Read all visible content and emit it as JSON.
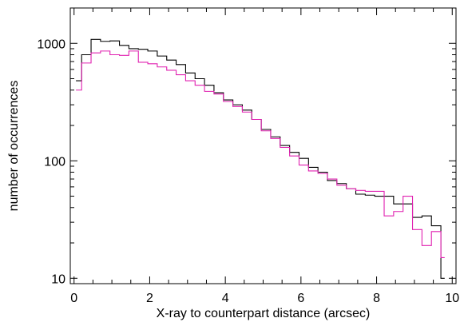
{
  "chart_data": {
    "type": "line",
    "step": true,
    "xlabel": "X-ray to counterpart distance (arcsec)",
    "ylabel": "number of occurrences",
    "xlim": [
      -0.1,
      10.1
    ],
    "ylim": [
      9,
      2000
    ],
    "yscale": "log",
    "xticks": [
      0,
      2,
      4,
      6,
      8,
      10
    ],
    "xtick_labels": [
      "0",
      "2",
      "4",
      "6",
      "8",
      "10"
    ],
    "yticks": [
      10,
      100,
      1000
    ],
    "ytick_labels": [
      "10",
      "100",
      "1000"
    ],
    "grid": false,
    "bin_edges": [
      0.05,
      0.2,
      0.45,
      0.7,
      0.95,
      1.2,
      1.45,
      1.7,
      1.95,
      2.2,
      2.45,
      2.7,
      2.95,
      3.2,
      3.45,
      3.7,
      3.95,
      4.2,
      4.45,
      4.7,
      4.95,
      5.2,
      5.45,
      5.7,
      5.95,
      6.2,
      6.45,
      6.7,
      6.95,
      7.2,
      7.45,
      7.7,
      7.95,
      8.2,
      8.45,
      8.7,
      8.95,
      9.2,
      9.45,
      9.7,
      9.8
    ],
    "series": [
      {
        "color": "#000000",
        "values": [
          480,
          800,
          1080,
          1040,
          1050,
          960,
          900,
          890,
          860,
          780,
          720,
          660,
          560,
          500,
          440,
          380,
          330,
          300,
          270,
          225,
          185,
          160,
          135,
          118,
          105,
          88,
          80,
          68,
          64,
          58,
          52,
          51,
          50,
          50,
          43,
          43,
          33,
          34,
          28,
          10
        ]
      },
      {
        "color": "#e020b0",
        "values": [
          400,
          680,
          830,
          860,
          800,
          790,
          860,
          690,
          670,
          630,
          590,
          540,
          480,
          440,
          390,
          370,
          320,
          290,
          260,
          225,
          180,
          155,
          130,
          110,
          92,
          82,
          78,
          70,
          62,
          58,
          56,
          55,
          55,
          34,
          37,
          50,
          26,
          19,
          25,
          15
        ]
      }
    ]
  }
}
